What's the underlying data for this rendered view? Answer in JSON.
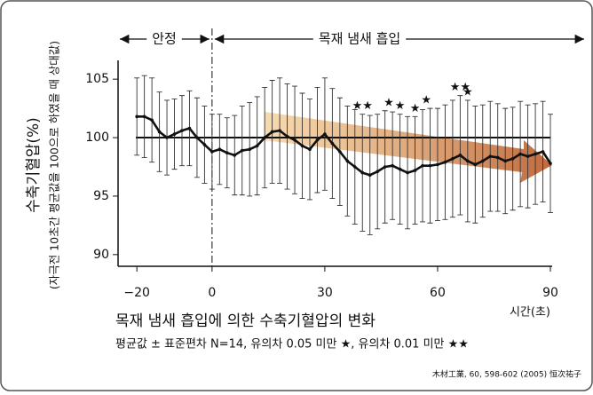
{
  "chart_data": {
    "type": "line",
    "title": "목재 냄새 흡입에 의한 수축기혈압의 변화",
    "subtitle": "평균값 ± 표준편차 N=14, 유의차 0.05 미만 ★, 유의차 0.01 미만 ★★",
    "source": "木材工業, 60, 598-602 (2005) 恒次祐子",
    "y_label": "수축기혈압(%)",
    "y_sublabel": "(자극전 10초간 평균값을 100으로 하였을 때 상대값)",
    "x_label": "시간(초)",
    "phases": [
      {
        "label": "안정"
      },
      {
        "label": "목재 냄새 흡입"
      }
    ],
    "divider": 0,
    "reference": 100,
    "x": [
      -20,
      -18,
      -16,
      -14,
      -12,
      -10,
      -8,
      -6,
      -4,
      -2,
      0,
      2,
      4,
      6,
      8,
      10,
      12,
      14,
      16,
      18,
      20,
      22,
      24,
      26,
      28,
      30,
      32,
      34,
      36,
      38,
      40,
      42,
      44,
      46,
      48,
      50,
      52,
      54,
      56,
      58,
      60,
      62,
      64,
      66,
      68,
      70,
      72,
      74,
      76,
      78,
      80,
      82,
      84,
      86,
      88,
      90
    ],
    "series": [
      {
        "name": "수축기혈압",
        "color": "#111111",
        "values": [
          101.8,
          101.8,
          101.5,
          100.5,
          100.0,
          100.3,
          100.6,
          100.8,
          100.0,
          99.4,
          98.8,
          99.0,
          98.7,
          98.5,
          98.9,
          99.0,
          99.3,
          100.0,
          100.5,
          100.6,
          100.1,
          99.8,
          99.3,
          99.0,
          99.8,
          100.3,
          99.5,
          98.8,
          98.0,
          97.5,
          97.0,
          96.8,
          97.1,
          97.5,
          97.6,
          97.3,
          97.0,
          97.2,
          97.6,
          97.6,
          97.7,
          97.9,
          98.2,
          98.5,
          98.0,
          97.7,
          98.0,
          98.4,
          98.3,
          98.0,
          98.2,
          98.6,
          98.4,
          98.6,
          98.8,
          97.8
        ],
        "errors": [
          3.3,
          3.5,
          3.6,
          3.4,
          3.2,
          3.0,
          3.0,
          3.2,
          3.4,
          3.3,
          3.2,
          3.0,
          3.0,
          3.4,
          3.8,
          4.0,
          4.2,
          4.3,
          4.4,
          4.5,
          4.5,
          4.6,
          4.5,
          4.3,
          4.5,
          4.8,
          4.7,
          4.6,
          4.7,
          4.9,
          5.0,
          5.1,
          4.9,
          4.8,
          4.6,
          4.7,
          4.8,
          4.6,
          4.8,
          4.9,
          4.8,
          4.9,
          5.0,
          5.1,
          5.2,
          5.0,
          4.8,
          4.7,
          4.6,
          4.5,
          4.4,
          4.5,
          4.4,
          4.3,
          4.3,
          4.2
        ]
      }
    ],
    "significance": [
      {
        "x": 40,
        "label": "★★"
      },
      {
        "x": 47,
        "label": "★"
      },
      {
        "x": 50,
        "label": "★"
      },
      {
        "x": 54,
        "label": "★"
      },
      {
        "x": 57,
        "label": "★"
      },
      {
        "x": 66,
        "label": "★★"
      },
      {
        "x": 68,
        "label": "★"
      }
    ],
    "xlim": [
      -25,
      90
    ],
    "ylim": [
      89,
      106
    ],
    "xticks": [
      {
        "value": -20,
        "label": "−20"
      },
      0,
      30,
      60,
      90
    ],
    "yticks": [
      90,
      95,
      100,
      105
    ]
  }
}
